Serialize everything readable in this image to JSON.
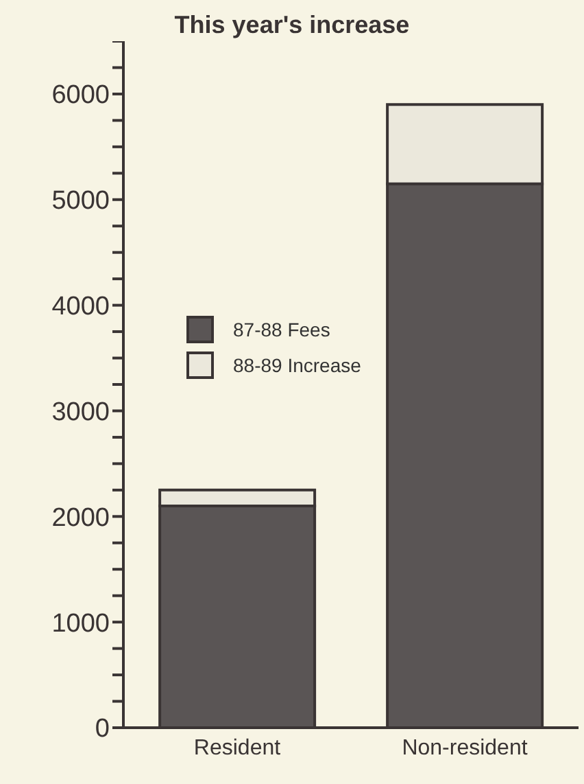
{
  "chart_data": {
    "type": "bar",
    "title": "This year's increase",
    "categories": [
      "Resident",
      "Non-resident"
    ],
    "stacked": true,
    "series": [
      {
        "name": "87-88 Fees",
        "color": "#5a5555",
        "values": [
          2100,
          5150
        ]
      },
      {
        "name": "88-89 Increase",
        "color": "#ebe8dc",
        "values": [
          150,
          750
        ]
      }
    ],
    "ylim": [
      0,
      6500
    ],
    "yticks": [
      0,
      {
        "value": 250,
        "label": null
      },
      {
        "value": 500,
        "label": null
      },
      {
        "value": 750,
        "label": null
      },
      1000,
      {
        "value": 1250,
        "label": null
      },
      {
        "value": 1500,
        "label": null
      },
      {
        "value": 1750,
        "label": null
      },
      2000,
      {
        "value": 2250,
        "label": null
      },
      {
        "value": 2500,
        "label": null
      },
      {
        "value": 2750,
        "label": null
      },
      3000,
      {
        "value": 3250,
        "label": null
      },
      {
        "value": 3500,
        "label": null
      },
      {
        "value": 3750,
        "label": null
      },
      4000,
      {
        "value": 4250,
        "label": null
      },
      {
        "value": 4500,
        "label": null
      },
      {
        "value": 4750,
        "label": null
      },
      5000,
      {
        "value": 5250,
        "label": null
      },
      {
        "value": 5500,
        "label": null
      },
      {
        "value": 5750,
        "label": null
      },
      6000,
      {
        "value": 6250,
        "label": null
      },
      {
        "value": 6500,
        "label": null
      }
    ],
    "grid": false,
    "legend": "left"
  }
}
